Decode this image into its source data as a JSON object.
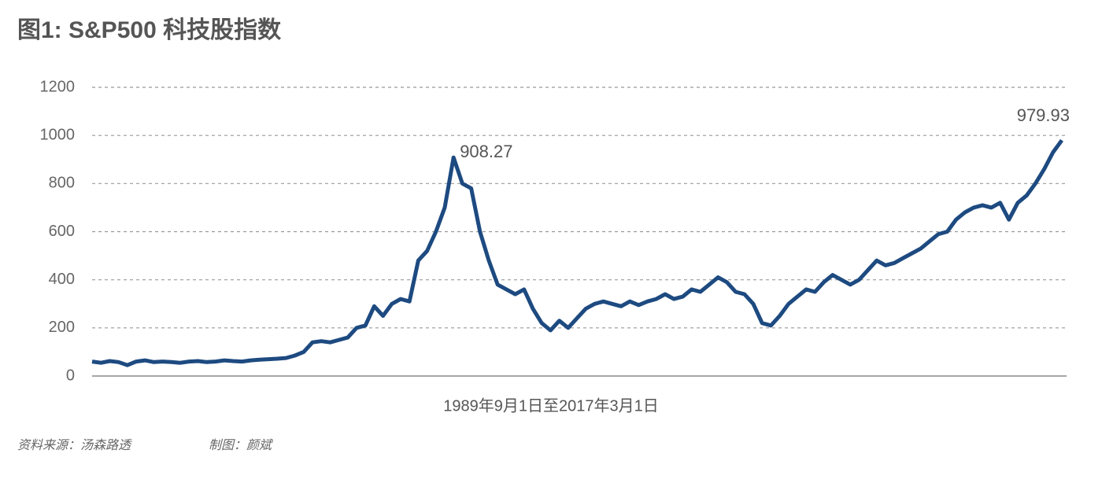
{
  "chart_data": {
    "type": "line",
    "title": "图1: S&P500 科技股指数",
    "xlabel": "1989年9月1日至2017年3月1日",
    "source": "资料来源：汤森路透",
    "credit": "制图：颜斌",
    "series": [
      {
        "name": "S&P500 科技股指数",
        "color": "#1d4a80",
        "values": [
          60,
          55,
          62,
          58,
          45,
          60,
          65,
          58,
          60,
          58,
          55,
          60,
          62,
          58,
          60,
          65,
          62,
          60,
          65,
          68,
          70,
          72,
          75,
          85,
          100,
          140,
          145,
          140,
          150,
          160,
          200,
          210,
          290,
          250,
          300,
          320,
          310,
          480,
          520,
          600,
          700,
          908.27,
          800,
          780,
          600,
          480,
          380,
          360,
          340,
          360,
          280,
          220,
          190,
          230,
          200,
          240,
          280,
          300,
          310,
          300,
          290,
          310,
          295,
          310,
          320,
          340,
          320,
          330,
          360,
          350,
          380,
          410,
          390,
          350,
          340,
          300,
          220,
          210,
          250,
          300,
          330,
          360,
          350,
          390,
          420,
          400,
          380,
          400,
          440,
          480,
          460,
          470,
          490,
          510,
          530,
          560,
          590,
          600,
          650,
          680,
          700,
          710,
          700,
          720,
          650,
          720,
          750,
          800,
          860,
          930,
          979.93
        ]
      }
    ],
    "annotations": [
      908.27,
      979.93
    ],
    "ylim": [
      0,
      1200
    ],
    "yticks": [
      0,
      200,
      400,
      600,
      800,
      1000,
      1200
    ],
    "grid": true
  }
}
